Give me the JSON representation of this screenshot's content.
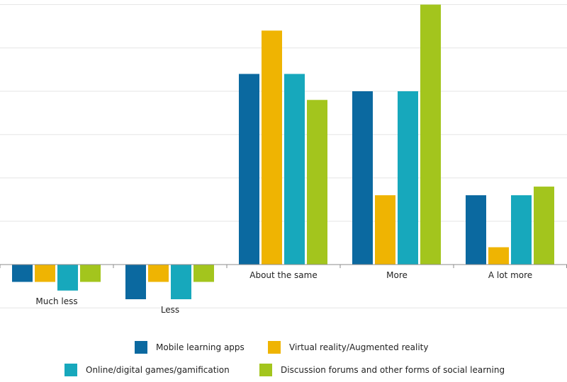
{
  "chart_data": {
    "type": "bar",
    "title": "",
    "xlabel": "",
    "ylabel": "",
    "unit": "%",
    "ylim": [
      -10,
      30
    ],
    "grid": true,
    "grid_step": 5,
    "categories": [
      "Much less",
      "Less",
      "About the same",
      "More",
      "A lot more"
    ],
    "series": [
      {
        "name": "Mobile learning apps",
        "color": "#0b69a0",
        "values": [
          -2,
          -4,
          22,
          20,
          8
        ]
      },
      {
        "name": "Virtual reality/Augmented reality",
        "color": "#efb402",
        "values": [
          -2,
          -2,
          27,
          8,
          2
        ]
      },
      {
        "name": "Online/digital games/gamification",
        "color": "#17a8bc",
        "values": [
          -3,
          -4,
          22,
          20,
          8
        ]
      },
      {
        "name": "Discussion forums and other forms of social learning",
        "color": "#a3c51d",
        "values": [
          -2,
          -2,
          19,
          30,
          9
        ]
      }
    ],
    "legend_position": "bottom"
  }
}
